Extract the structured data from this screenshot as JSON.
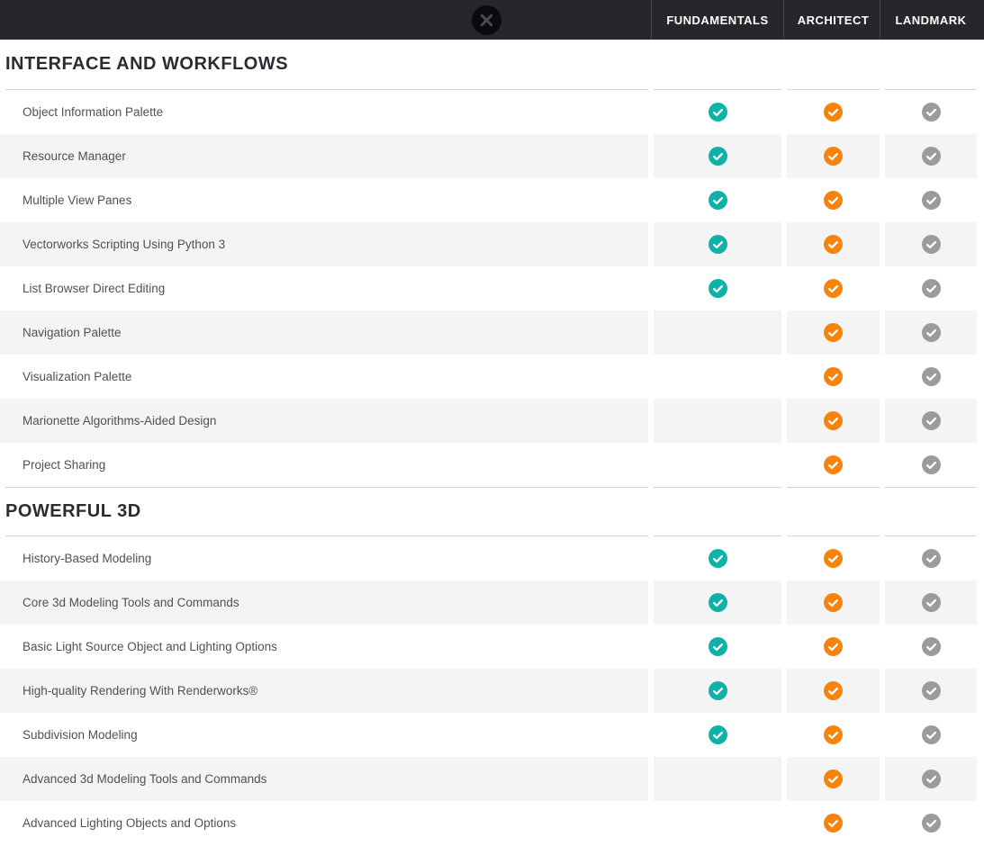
{
  "header": {
    "close_icon": "close-icon",
    "columns": [
      "FUNDAMENTALS",
      "ARCHITECT",
      "LANDMARK"
    ]
  },
  "colors": {
    "bar_background": "#26262b",
    "bar_separator": "#46474d",
    "close_circle": "#0b0b0f",
    "close_x": "#4a4b51",
    "fundamentals_check": "#0fb2a8",
    "architect_check": "#f8830c",
    "landmark_check": "#9b9b9b",
    "row_stripe": "#f4f4f4",
    "divider_line": "#d5d5d5",
    "section_title_text": "#2b2c31",
    "row_label_text": "#505055"
  },
  "icons": {
    "check": "check-circle-icon",
    "close": "close-icon"
  },
  "sections": [
    {
      "title": "INTERFACE AND WORKFLOWS",
      "rows": [
        {
          "label": "Object Information Palette",
          "fundamentals": true,
          "architect": true,
          "landmark": true
        },
        {
          "label": "Resource Manager",
          "fundamentals": true,
          "architect": true,
          "landmark": true
        },
        {
          "label": "Multiple View Panes",
          "fundamentals": true,
          "architect": true,
          "landmark": true
        },
        {
          "label": "Vectorworks Scripting Using Python 3",
          "fundamentals": true,
          "architect": true,
          "landmark": true
        },
        {
          "label": "List Browser Direct Editing",
          "fundamentals": true,
          "architect": true,
          "landmark": true
        },
        {
          "label": "Navigation Palette",
          "fundamentals": false,
          "architect": true,
          "landmark": true
        },
        {
          "label": "Visualization Palette",
          "fundamentals": false,
          "architect": true,
          "landmark": true
        },
        {
          "label": "Marionette Algorithms-Aided Design",
          "fundamentals": false,
          "architect": true,
          "landmark": true
        },
        {
          "label": "Project Sharing",
          "fundamentals": false,
          "architect": true,
          "landmark": true
        }
      ]
    },
    {
      "title": "POWERFUL 3D",
      "rows": [
        {
          "label": "History-Based Modeling",
          "fundamentals": true,
          "architect": true,
          "landmark": true
        },
        {
          "label": "Core 3d Modeling Tools and Commands",
          "fundamentals": true,
          "architect": true,
          "landmark": true
        },
        {
          "label": "Basic Light Source Object and Lighting Options",
          "fundamentals": true,
          "architect": true,
          "landmark": true
        },
        {
          "label": "High-quality Rendering With Renderworks®",
          "fundamentals": true,
          "architect": true,
          "landmark": true
        },
        {
          "label": "Subdivision Modeling",
          "fundamentals": true,
          "architect": true,
          "landmark": true
        },
        {
          "label": "Advanced 3d Modeling Tools and Commands",
          "fundamentals": false,
          "architect": true,
          "landmark": true
        },
        {
          "label": "Advanced Lighting Objects and Options",
          "fundamentals": false,
          "architect": true,
          "landmark": true
        }
      ]
    }
  ]
}
